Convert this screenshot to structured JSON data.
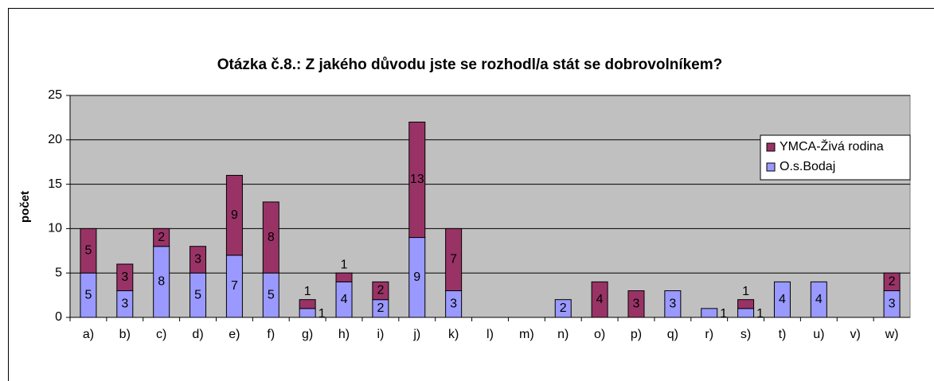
{
  "chart_data": {
    "type": "bar",
    "stacked": true,
    "title": "Otázka č.8.: Z jakého důvodu jste se rozhodl/a stát se dobrovolníkem?",
    "ylabel": "počet",
    "categories": [
      "a)",
      "b)",
      "c)",
      "d)",
      "e)",
      "f)",
      "g)",
      "h)",
      "i)",
      "j)",
      "k)",
      "l)",
      "m)",
      "n)",
      "o)",
      "p)",
      "q)",
      "r)",
      "s)",
      "t)",
      "u)",
      "v)",
      "w)"
    ],
    "series": [
      {
        "name": "O.s.Bodaj",
        "color": "#9999ff",
        "values": [
          5,
          3,
          8,
          5,
          7,
          5,
          1,
          4,
          2,
          9,
          3,
          null,
          null,
          2,
          null,
          null,
          3,
          1,
          1,
          4,
          4,
          null,
          3
        ]
      },
      {
        "name": "YMCA-Živá rodina",
        "color": "#993366",
        "values": [
          5,
          3,
          2,
          3,
          9,
          8,
          1,
          1,
          2,
          13,
          7,
          null,
          null,
          null,
          4,
          3,
          null,
          null,
          1,
          null,
          null,
          null,
          2
        ]
      }
    ],
    "ylim": [
      0,
      25
    ],
    "yticks": [
      0,
      5,
      10,
      15,
      20,
      25
    ],
    "grid": true,
    "legend": "right"
  }
}
